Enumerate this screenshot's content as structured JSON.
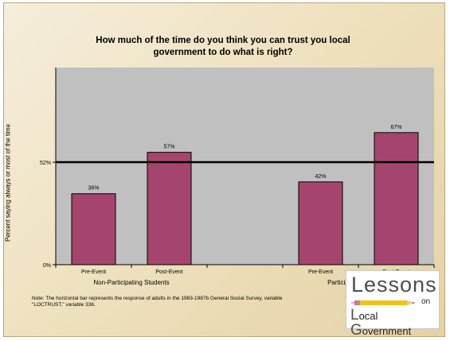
{
  "chart_data": {
    "type": "bar",
    "title": "How much of the time do you think you can trust you local government  to do what is right?",
    "ylabel": "Percent saying always or most of the time",
    "ylim": [
      0,
      100
    ],
    "y_ticks": [
      {
        "value": 0,
        "label": "0%"
      },
      {
        "value": 52,
        "label": "52%"
      }
    ],
    "reference_line": {
      "value": 52
    },
    "groups": [
      {
        "label": "Non-Participating Students",
        "bars": [
          {
            "label": "Pre-Event",
            "value": 36,
            "value_label": "36%"
          },
          {
            "label": "Post-Event",
            "value": 57,
            "value_label": "57%"
          }
        ]
      },
      {
        "label": "Participating Students",
        "bars": [
          {
            "label": "Pre-Event",
            "value": 42,
            "value_label": "42%"
          },
          {
            "label": "Post-Event",
            "value": 67,
            "value_label": "67%"
          }
        ]
      }
    ],
    "grid": false,
    "colors": {
      "bar": "#a5456e",
      "plot_bg": "#c0c0c0",
      "reference_line": "#000000"
    }
  },
  "note": "Note: The horizontal bar represents the response of adults in the 1983-1987b General Social Survey, variable \"LOCTRUST,\" variable 336.",
  "logo": {
    "line1": "Lessons",
    "line2": "on",
    "line3_initial_l": "L",
    "line3_a": "ocal ",
    "line3_initial_g": "G",
    "line3_b": "overnment",
    "icon": "pencil-icon"
  }
}
